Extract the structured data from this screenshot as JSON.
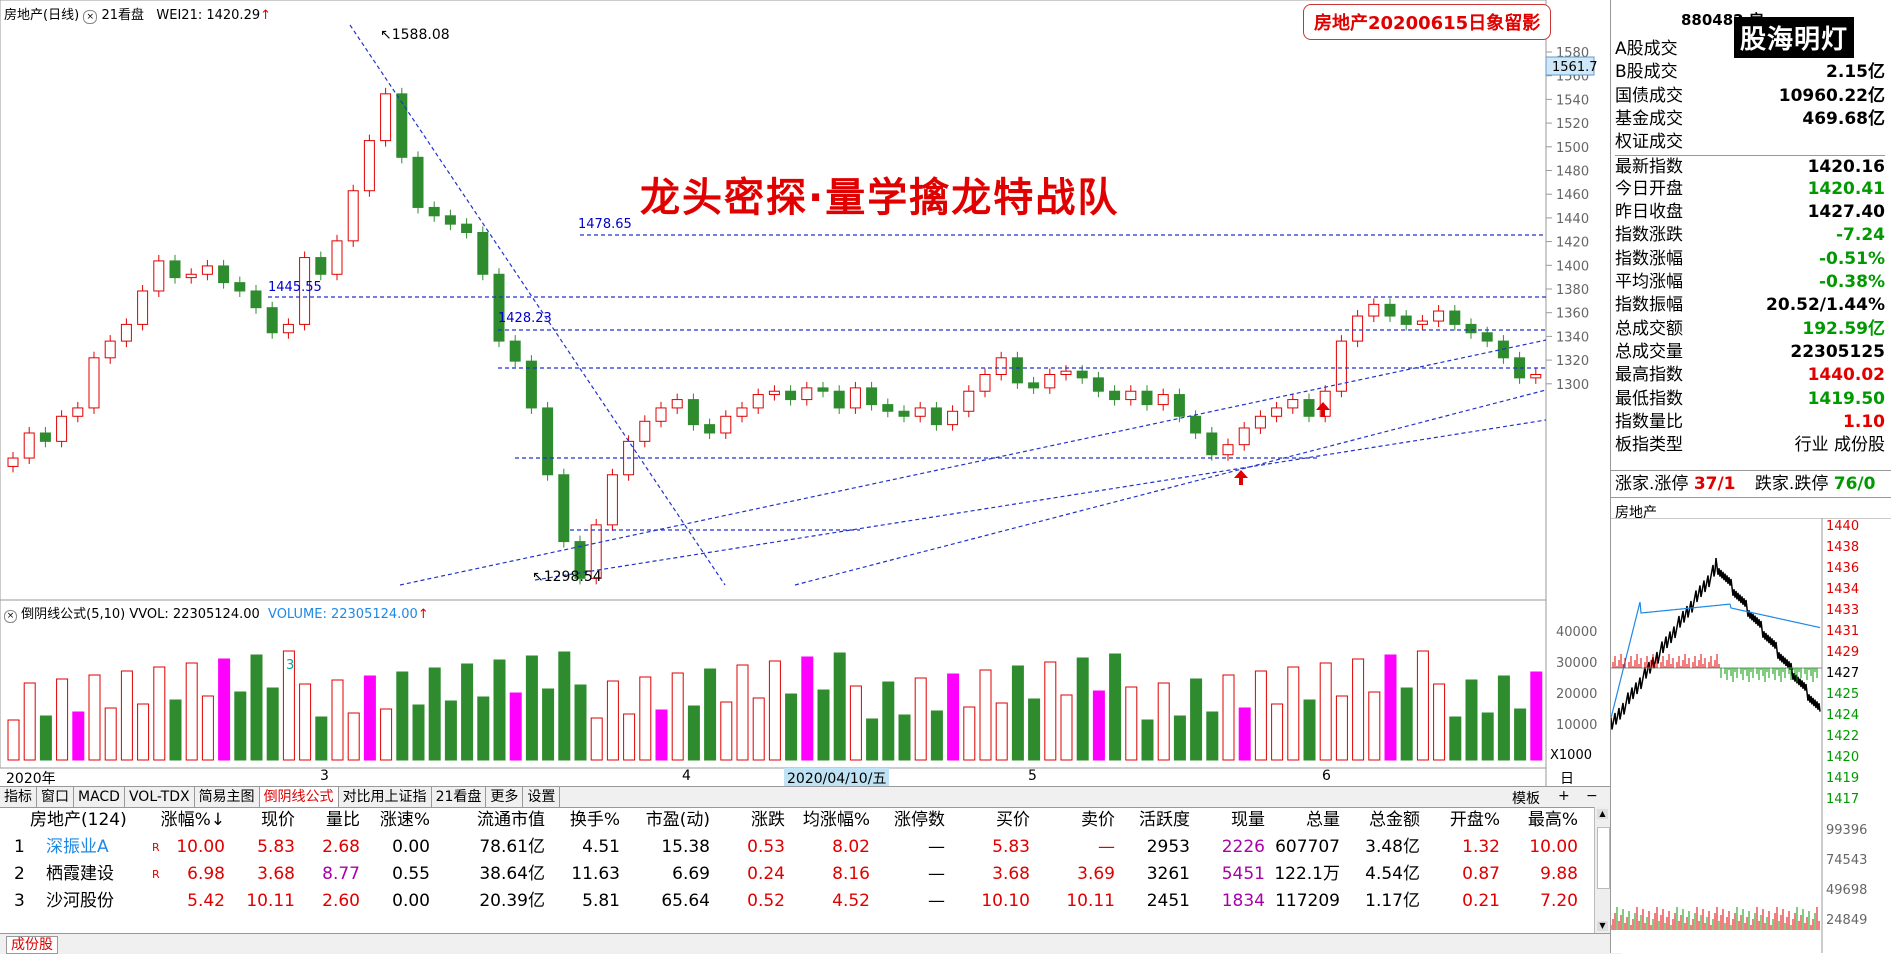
{
  "header": {
    "title": "房地产(日线)",
    "index_ref": "21看盘",
    "wei_label": "WEI21: 1420.29",
    "arrow": "↑"
  },
  "watermark": "房地产20200615日象留影",
  "brand": "股海明灯",
  "slogan": "龙头密探·量学擒龙特战队",
  "price_axis": [
    "1580",
    "1560",
    "1540",
    "1520",
    "1500",
    "1480",
    "1460",
    "1440",
    "1420",
    "1400",
    "1380",
    "1360",
    "1340",
    "1320",
    "1300"
  ],
  "price_marker": "1561.7",
  "annotations": {
    "high": "1588.08",
    "low": "1298.54",
    "l1": "1478.65",
    "l2": "1445.55",
    "l3": "1428.23"
  },
  "volume_header": {
    "name": "倒阴线公式(5,10)",
    "vvol": "VVOL: 22305124.00",
    "volume": "VOLUME: 22305124.00",
    "arrow": "↑",
    "marker": "3"
  },
  "volume_axis": [
    "40000",
    "30000",
    "20000",
    "10000"
  ],
  "volume_unit": "X1000",
  "time_axis": {
    "year": "2020年",
    "m3": "3",
    "m4": "4",
    "m5": "5",
    "m6": "6",
    "cursor_date": "2020/04/10/五",
    "period": "日线"
  },
  "tabs": [
    "指标",
    "窗口",
    "MACD",
    "VOL-TDX",
    "简易主图",
    "倒阴线公式",
    "对比用上证指",
    "21看盘",
    "更多",
    "设置"
  ],
  "tabs_right": [
    "模板",
    "+",
    "−"
  ],
  "table": {
    "headers": [
      "房地产(124)",
      "涨幅%↓",
      "现价",
      "量比",
      "涨速%",
      "流通市值",
      "换手%",
      "市盈(动)",
      "涨跌",
      "均涨幅%",
      "涨停数",
      "买价",
      "卖价",
      "活跃度",
      "现量",
      "总量",
      "总金额",
      "开盘%",
      "最高%"
    ],
    "rows": [
      [
        "1",
        "深振业A",
        "R",
        "10.00",
        "5.83",
        "2.68",
        "0.00",
        "78.61亿",
        "4.51",
        "15.38",
        "0.53",
        "8.02",
        "—",
        "5.83",
        "—",
        "2953",
        "2226",
        "607707",
        "3.48亿",
        "1.32",
        "10.00"
      ],
      [
        "2",
        "栖霞建设",
        "R",
        "6.98",
        "3.68",
        "8.77",
        "0.55",
        "38.64亿",
        "11.63",
        "6.69",
        "0.24",
        "8.16",
        "—",
        "3.68",
        "3.69",
        "3261",
        "5451",
        "122.1万",
        "4.54亿",
        "0.87",
        "9.88"
      ],
      [
        "3",
        "沙河股份",
        "",
        "5.42",
        "10.11",
        "2.60",
        "0.00",
        "20.39亿",
        "5.81",
        "65.64",
        "0.52",
        "4.52",
        "—",
        "10.10",
        "10.11",
        "2451",
        "1834",
        "117209",
        "1.17亿",
        "0.21",
        "7.20"
      ]
    ]
  },
  "bottom_tab": "成份股",
  "right_panel": {
    "code": "880482",
    "code_suffix": "房",
    "rows": [
      {
        "k": "A股成交",
        "v": ""
      },
      {
        "k": "B股成交",
        "v": "2.15亿"
      },
      {
        "k": "国债成交",
        "v": "10960.22亿"
      },
      {
        "k": "基金成交",
        "v": "469.68亿"
      },
      {
        "k": "权证成交",
        "v": ""
      },
      {
        "k": "最新指数",
        "v": "1420.16"
      },
      {
        "k": "今日开盘",
        "v": "1420.41"
      },
      {
        "k": "昨日收盘",
        "v": "1427.40"
      },
      {
        "k": "指数涨跌",
        "v": "-7.24"
      },
      {
        "k": "指数涨幅",
        "v": "-0.51%"
      },
      {
        "k": "平均涨幅",
        "v": "-0.38%"
      },
      {
        "k": "指数振幅",
        "v": "20.52/1.44%"
      },
      {
        "k": "总成交额",
        "v": "192.59亿"
      },
      {
        "k": "总成交量",
        "v": "22305125"
      },
      {
        "k": "最高指数",
        "v": "1440.02"
      },
      {
        "k": "最低指数",
        "v": "1419.50"
      },
      {
        "k": "指数量比",
        "v": "1.10"
      },
      {
        "k": "板指类型",
        "v": "行业 成份股"
      }
    ],
    "zhang_label": "涨家.涨停",
    "zhang_value": "37/1",
    "die_label": "跌家.跌停",
    "die_value": "76/0",
    "mini_title": "房地产",
    "mini_axis": [
      "1440",
      "1438",
      "1436",
      "1434",
      "1433",
      "1431",
      "1429",
      "1427",
      "1425",
      "1424",
      "1422",
      "1420",
      "1419",
      "1417"
    ],
    "vol_axis": [
      "99396",
      "74543",
      "49698",
      "24849"
    ]
  }
}
